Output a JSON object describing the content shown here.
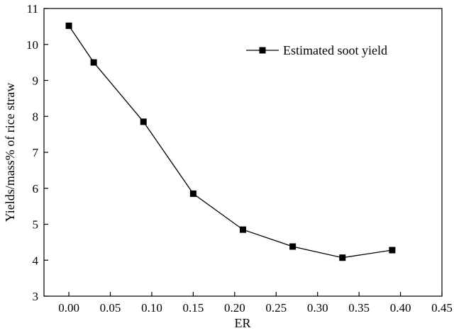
{
  "chart_data": {
    "type": "line",
    "title": "",
    "xlabel": "ER",
    "ylabel": "Yields/mass% of rice straw",
    "xlim": [
      -0.03,
      0.45
    ],
    "ylim": [
      3,
      11
    ],
    "xticks": [
      0.0,
      0.05,
      0.1,
      0.15,
      0.2,
      0.25,
      0.3,
      0.35,
      0.4,
      0.45
    ],
    "xtick_labels": [
      "0.00",
      "0.05",
      "0.10",
      "0.15",
      "0.20",
      "0.25",
      "0.30",
      "0.35",
      "0.40",
      "0.45"
    ],
    "yticks": [
      3,
      4,
      5,
      6,
      7,
      8,
      9,
      10,
      11
    ],
    "ytick_labels": [
      "3",
      "4",
      "5",
      "6",
      "7",
      "8",
      "9",
      "10",
      "11"
    ],
    "grid": false,
    "legend_position": "top-right",
    "series": [
      {
        "name": "Estimated soot yield",
        "color": "#000000",
        "marker": "square",
        "x": [
          0.0,
          0.03,
          0.09,
          0.15,
          0.21,
          0.27,
          0.33,
          0.39
        ],
        "y": [
          10.52,
          9.5,
          7.85,
          5.85,
          4.85,
          4.38,
          4.07,
          4.28
        ]
      }
    ]
  }
}
